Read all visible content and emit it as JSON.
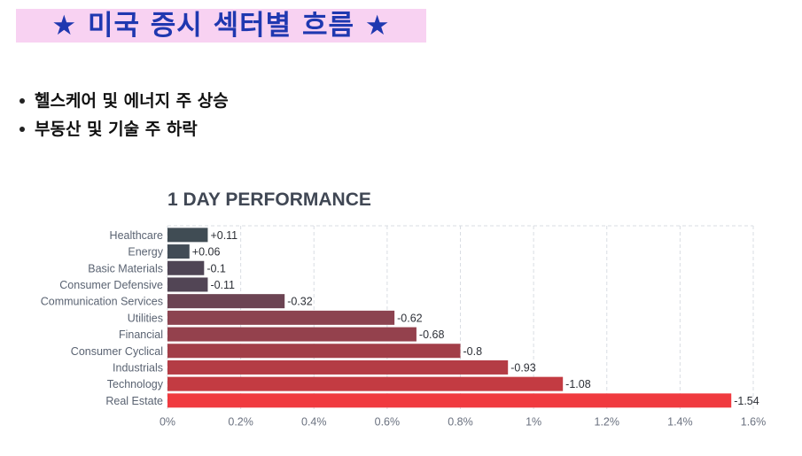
{
  "header": {
    "title": "★ 미국 증시 섹터별 흐름 ★"
  },
  "bullets": [
    "헬스케어 및 에너지 주 상승",
    "부동산 및 기술 주 하락"
  ],
  "chart_data": {
    "type": "bar",
    "orientation": "horizontal",
    "title": "1 DAY PERFORMANCE",
    "categories": [
      "Healthcare",
      "Energy",
      "Basic Materials",
      "Consumer Defensive",
      "Communication Services",
      "Utilities",
      "Financial",
      "Consumer Cyclical",
      "Industrials",
      "Technology",
      "Real Estate"
    ],
    "values": [
      0.11,
      0.06,
      -0.1,
      -0.11,
      -0.32,
      -0.62,
      -0.68,
      -0.8,
      -0.93,
      -1.08,
      -1.54
    ],
    "value_labels": [
      "+0.11",
      "+0.06",
      "-0.1",
      "-0.11",
      "-0.32",
      "-0.62",
      "-0.68",
      "-0.8",
      "-0.93",
      "-1.08",
      "-1.54"
    ],
    "bar_colors": [
      "#404c54",
      "#424c56",
      "#4f4555",
      "#524555",
      "#6c4453",
      "#8c4350",
      "#94414d",
      "#a23e48",
      "#b43c45",
      "#c33b42",
      "#f03a3f"
    ],
    "xticks": [
      "0%",
      "0.2%",
      "0.4%",
      "0.6%",
      "0.8%",
      "1%",
      "1.2%",
      "1.4%",
      "1.6%"
    ],
    "xlim": [
      0,
      1.6
    ],
    "grid": true
  }
}
